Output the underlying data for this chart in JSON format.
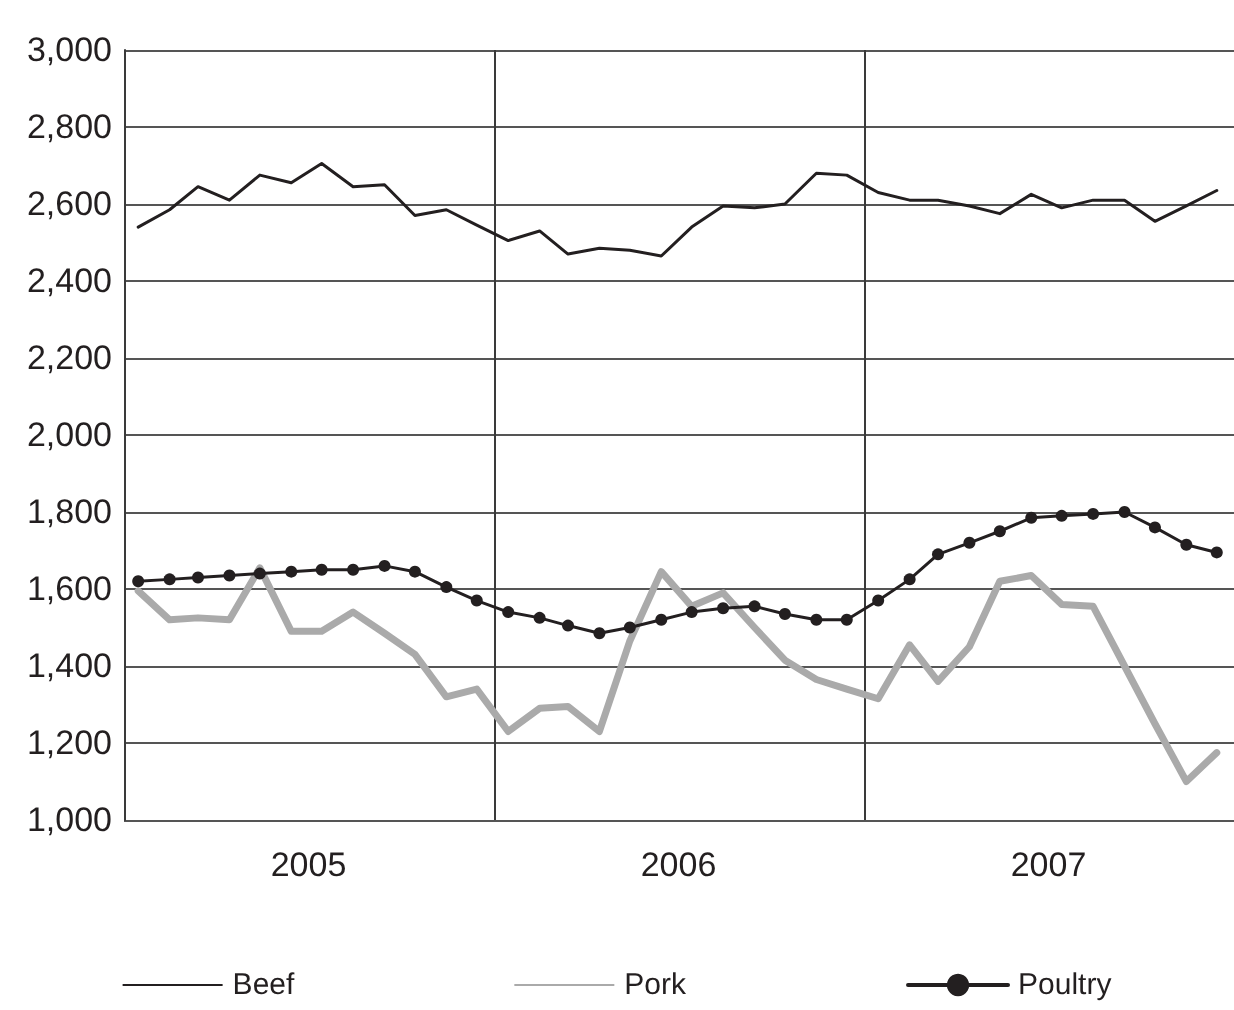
{
  "chart_data": {
    "type": "line",
    "x": [
      "2005-01-15",
      "2005-02-15",
      "2005-03-15",
      "2005-04-15",
      "2005-05-15",
      "2005-06-15",
      "2005-07-15",
      "2005-08-15",
      "2005-09-15",
      "2005-10-15",
      "2005-11-15",
      "2005-12-15",
      "2006-01-15",
      "2006-02-15",
      "2006-03-15",
      "2006-04-15",
      "2006-05-15",
      "2006-06-15",
      "2006-07-15",
      "2006-08-15",
      "2006-09-15",
      "2006-10-15",
      "2006-11-15",
      "2006-12-15",
      "2007-01-15",
      "2007-02-15",
      "2007-03-15",
      "2007-04-15",
      "2007-05-15",
      "2007-06-15",
      "2007-07-15",
      "2007-08-15",
      "2007-09-15",
      "2007-10-15",
      "2007-11-15",
      "2007-12-15"
    ],
    "series": [
      {
        "name": "Beef",
        "color": "#231f20",
        "marker": "none",
        "line_style": "solid",
        "values": [
          2540,
          2585,
          2645,
          2610,
          2675,
          2655,
          2705,
          2645,
          2650,
          2570,
          2585,
          2545,
          2505,
          2530,
          2470,
          2485,
          2480,
          2465,
          2540,
          2595,
          2590,
          2600,
          2680,
          2675,
          2630,
          2610,
          2610,
          2595,
          2575,
          2625,
          2590,
          2610,
          2610,
          2555,
          2595,
          2635
        ]
      },
      {
        "name": "Pork",
        "color": "#aaaaaa",
        "marker": "none",
        "line_style": "solid",
        "values": [
          1595,
          1520,
          1525,
          1520,
          1655,
          1490,
          1490,
          1540,
          1485,
          1430,
          1320,
          1340,
          1230,
          1290,
          1295,
          1230,
          1465,
          1645,
          1555,
          1590,
          1500,
          1415,
          1365,
          1340,
          1315,
          1455,
          1360,
          1450,
          1620,
          1635,
          1560,
          1555,
          1400,
          1250,
          1100,
          1175
        ]
      },
      {
        "name": "Poultry",
        "color": "#231f20",
        "marker": "circle",
        "line_style": "solid",
        "values": [
          1620,
          1625,
          1630,
          1635,
          1640,
          1645,
          1650,
          1650,
          1660,
          1645,
          1605,
          1570,
          1540,
          1525,
          1505,
          1485,
          1500,
          1520,
          1540,
          1550,
          1555,
          1535,
          1520,
          1520,
          1570,
          1625,
          1690,
          1720,
          1750,
          1785,
          1790,
          1795,
          1800,
          1760,
          1715,
          1695
        ]
      }
    ],
    "xlim": [
      "2005-01-01",
      "2008-01-01"
    ],
    "xticks": [
      {
        "value": "2005-07-02",
        "label": "2005"
      },
      {
        "value": "2006-01-01",
        "label": null
      },
      {
        "value": "2006-07-02",
        "label": "2006"
      },
      {
        "value": "2007-01-01",
        "label": null
      },
      {
        "value": "2007-07-02",
        "label": "2007"
      }
    ],
    "ylim": [
      1000,
      3000
    ],
    "yticks": [
      {
        "value": 1000,
        "label": "1,000"
      },
      {
        "value": 1200,
        "label": "1,200"
      },
      {
        "value": 1400,
        "label": "1,400"
      },
      {
        "value": 1600,
        "label": "1,600"
      },
      {
        "value": 1800,
        "label": "1,800"
      },
      {
        "value": 2000,
        "label": "2,000"
      },
      {
        "value": 2200,
        "label": "2,200"
      },
      {
        "value": 2400,
        "label": "2,400"
      },
      {
        "value": 2600,
        "label": "2,600"
      },
      {
        "value": 2800,
        "label": "2,800"
      },
      {
        "value": 3000,
        "label": "3,000"
      }
    ],
    "grid": true,
    "legend": "bottom"
  }
}
